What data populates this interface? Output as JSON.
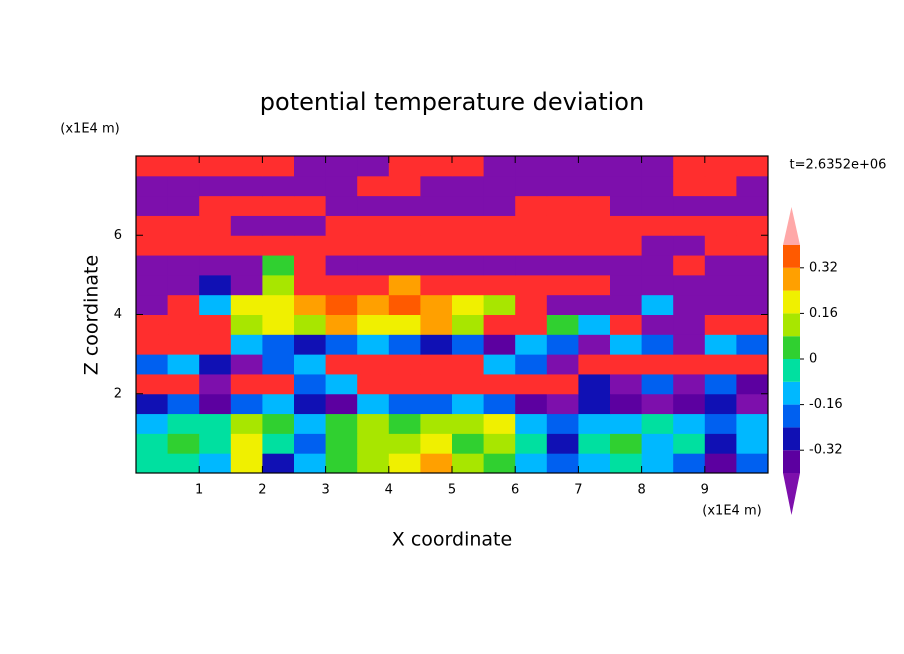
{
  "chart_data": {
    "type": "contour",
    "title": "potential temperature deviation",
    "xlabel": "X coordinate",
    "ylabel": "Z coordinate",
    "xunits": "(x1E4 m)",
    "yunits": "(x1E4 m)",
    "annotation": "t=2.6352e+06",
    "xlim": [
      0,
      10
    ],
    "ylim": [
      0,
      8
    ],
    "xticks": [
      1,
      2,
      3,
      4,
      5,
      6,
      7,
      8,
      9
    ],
    "yticks": [
      2,
      4,
      6
    ],
    "levels": [
      -0.4,
      -0.32,
      -0.24,
      -0.16,
      -0.08,
      0,
      0.08,
      0.16,
      0.24,
      0.32,
      0.4
    ],
    "colors": [
      "#7d0fac",
      "#5c00a0",
      "#1010b4",
      "#0060f0",
      "#00b8ff",
      "#00e0a0",
      "#30d030",
      "#a8e600",
      "#f0f000",
      "#ffa000",
      "#ff5a00",
      "#ff2e2e",
      "#ffa8a8"
    ],
    "colorbar_ticks": [
      0.32,
      0.16,
      0,
      -0.16,
      -0.32
    ],
    "x": [
      0.25,
      0.75,
      1.25,
      1.75,
      2.25,
      2.75,
      3.25,
      3.75,
      4.25,
      4.75,
      5.25,
      5.75,
      6.25,
      6.75,
      7.25,
      7.75,
      8.25,
      8.75,
      9.25,
      9.75
    ],
    "y": [
      0.25,
      0.75,
      1.25,
      1.75,
      2.25,
      2.75,
      3.25,
      3.75,
      4.25,
      4.75,
      5.25,
      5.75,
      6.25,
      6.75,
      7.25,
      7.75
    ],
    "z": [
      [
        -0.04,
        -0.04,
        -0.12,
        0.2,
        -0.28,
        -0.12,
        0.04,
        0.12,
        0.2,
        0.28,
        0.12,
        0.04,
        -0.12,
        -0.2,
        -0.12,
        -0.04,
        -0.12,
        -0.2,
        -0.36,
        -0.2
      ],
      [
        -0.04,
        0.04,
        -0.04,
        0.2,
        -0.04,
        -0.2,
        0.04,
        0.12,
        0.12,
        0.2,
        0.04,
        0.12,
        -0.04,
        -0.28,
        -0.04,
        0.04,
        -0.12,
        -0.04,
        -0.28,
        -0.12
      ],
      [
        -0.12,
        -0.04,
        -0.04,
        0.12,
        0.04,
        -0.12,
        0.04,
        0.12,
        0.04,
        0.12,
        0.12,
        0.2,
        -0.12,
        -0.2,
        -0.12,
        -0.12,
        -0.04,
        -0.12,
        -0.2,
        -0.12
      ],
      [
        -0.28,
        -0.2,
        -0.36,
        -0.2,
        -0.12,
        -0.28,
        -0.36,
        -0.12,
        -0.2,
        -0.2,
        -0.12,
        -0.2,
        -0.36,
        -0.5,
        -0.28,
        -0.36,
        -0.5,
        -0.36,
        -0.28,
        -0.5
      ],
      [
        0.5,
        0.5,
        -0.5,
        0.5,
        0.5,
        -0.2,
        -0.12,
        0.5,
        0.5,
        0.5,
        0.5,
        0.5,
        0.5,
        0.5,
        -0.28,
        -0.5,
        -0.2,
        -0.5,
        -0.2,
        -0.36
      ],
      [
        -0.2,
        -0.12,
        -0.28,
        -0.5,
        -0.2,
        -0.12,
        0.5,
        0.5,
        0.5,
        0.5,
        0.5,
        -0.12,
        -0.2,
        -0.5,
        0.5,
        0.5,
        0.5,
        0.5,
        0.5,
        0.5
      ],
      [
        0.5,
        0.5,
        0.5,
        -0.12,
        -0.2,
        -0.28,
        -0.2,
        -0.12,
        -0.2,
        -0.28,
        -0.2,
        -0.36,
        -0.12,
        -0.2,
        -0.5,
        -0.12,
        -0.2,
        -0.5,
        -0.12,
        -0.2
      ],
      [
        0.5,
        0.5,
        0.5,
        0.12,
        0.2,
        0.12,
        0.28,
        0.2,
        0.2,
        0.28,
        0.12,
        0.5,
        0.5,
        0.04,
        -0.12,
        0.5,
        -0.5,
        -0.5,
        0.5,
        0.5
      ],
      [
        -0.5,
        0.5,
        -0.12,
        0.2,
        0.2,
        0.28,
        0.36,
        0.28,
        0.36,
        0.28,
        0.2,
        0.12,
        0.5,
        -0.5,
        -0.5,
        -0.5,
        -0.12,
        -0.5,
        -0.5,
        -0.5
      ],
      [
        -0.5,
        -0.5,
        -0.28,
        -0.5,
        0.12,
        0.5,
        0.5,
        0.5,
        0.28,
        0.5,
        0.5,
        0.5,
        0.5,
        0.5,
        0.5,
        -0.5,
        -0.5,
        -0.5,
        -0.5,
        -0.5
      ],
      [
        -0.5,
        -0.5,
        -0.5,
        -0.5,
        0.04,
        0.5,
        -0.5,
        -0.5,
        -0.5,
        -0.5,
        -0.5,
        -0.5,
        -0.5,
        -0.5,
        -0.5,
        -0.5,
        -0.5,
        0.5,
        -0.5,
        -0.5
      ],
      [
        0.5,
        0.5,
        0.5,
        0.5,
        0.5,
        0.5,
        0.5,
        0.5,
        0.5,
        0.5,
        0.5,
        0.5,
        0.5,
        0.5,
        0.5,
        0.5,
        -0.5,
        -0.5,
        0.5,
        0.5
      ],
      [
        0.5,
        0.5,
        0.5,
        -0.5,
        -0.5,
        -0.5,
        0.5,
        0.5,
        0.5,
        0.5,
        0.5,
        0.5,
        0.5,
        0.5,
        0.5,
        0.5,
        0.5,
        0.5,
        0.5,
        0.5
      ],
      [
        -0.5,
        -0.5,
        0.5,
        0.5,
        0.5,
        0.5,
        -0.5,
        -0.5,
        -0.5,
        -0.5,
        -0.5,
        -0.5,
        0.5,
        0.5,
        0.5,
        -0.5,
        -0.5,
        -0.5,
        -0.5,
        -0.5
      ],
      [
        -0.5,
        -0.5,
        -0.5,
        -0.5,
        -0.5,
        -0.5,
        -0.5,
        0.5,
        0.5,
        -0.5,
        -0.5,
        -0.5,
        -0.5,
        -0.5,
        -0.5,
        -0.5,
        -0.5,
        0.5,
        0.5,
        -0.5
      ],
      [
        0.5,
        0.5,
        0.5,
        0.5,
        0.5,
        -0.5,
        -0.5,
        -0.5,
        0.5,
        0.5,
        0.5,
        -0.5,
        -0.5,
        -0.5,
        -0.5,
        -0.5,
        -0.5,
        0.5,
        0.5,
        0.5
      ]
    ]
  }
}
